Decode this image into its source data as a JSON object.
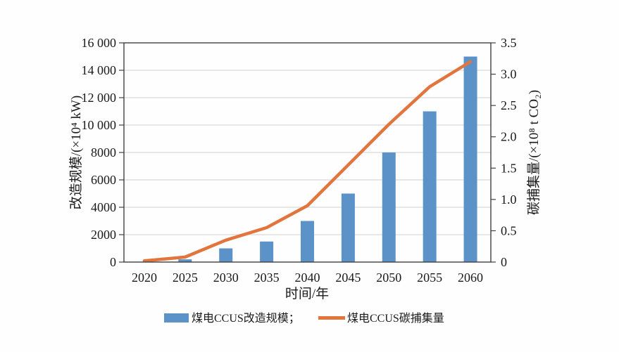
{
  "colors": {
    "bar": "#5B93C8",
    "line": "#E2753D",
    "grid": "#D9D9D9",
    "axis": "#404040",
    "text": "#1A1A1A",
    "background": "#FFFFFF"
  },
  "chart_data": {
    "type": "bar+line dual-axis",
    "title": "",
    "xlabel": "时间/年",
    "ylabel_left": "改造规模/(×10⁴ kW)",
    "ylabel_right": "碳捕集量/(×10⁸ t CO₂)",
    "categories": [
      "2020",
      "2025",
      "2030",
      "2035",
      "2040",
      "2045",
      "2050",
      "2055",
      "2060"
    ],
    "series": [
      {
        "name": "煤电CCUS改造规模",
        "type": "bar",
        "axis": "left",
        "color": "#5B93C8",
        "values": [
          0,
          200,
          1000,
          1500,
          3000,
          5000,
          8000,
          11000,
          15000
        ]
      },
      {
        "name": "煤电CCUS碳捕集量",
        "type": "line",
        "axis": "right",
        "color": "#E2753D",
        "values": [
          0.02,
          0.08,
          0.35,
          0.55,
          0.9,
          1.55,
          2.2,
          2.8,
          3.2
        ]
      }
    ],
    "ylim_left": [
      0,
      16000
    ],
    "ylim_right": [
      0,
      3.5
    ],
    "yticks_left_values": [
      0,
      2000,
      4000,
      6000,
      8000,
      10000,
      12000,
      14000,
      16000
    ],
    "yticks_left_labels": [
      "0",
      "2000",
      "4000",
      "6000",
      "8000",
      "10 000",
      "12 000",
      "14 000",
      "16 000"
    ],
    "yticks_right_values": [
      0,
      0.5,
      1.0,
      1.5,
      2.0,
      2.5,
      3.0,
      3.5
    ],
    "yticks_right_labels": [
      "0",
      "0.5",
      "1.0",
      "1.5",
      "2.0",
      "2.5",
      "3.0",
      "3.5"
    ],
    "grid": "horizontal",
    "legend_position": "bottom",
    "legend": [
      {
        "label": "煤电CCUS改造规模；",
        "swatch": "bar"
      },
      {
        "label": "煤电CCUS碳捕集量",
        "swatch": "line"
      }
    ]
  }
}
